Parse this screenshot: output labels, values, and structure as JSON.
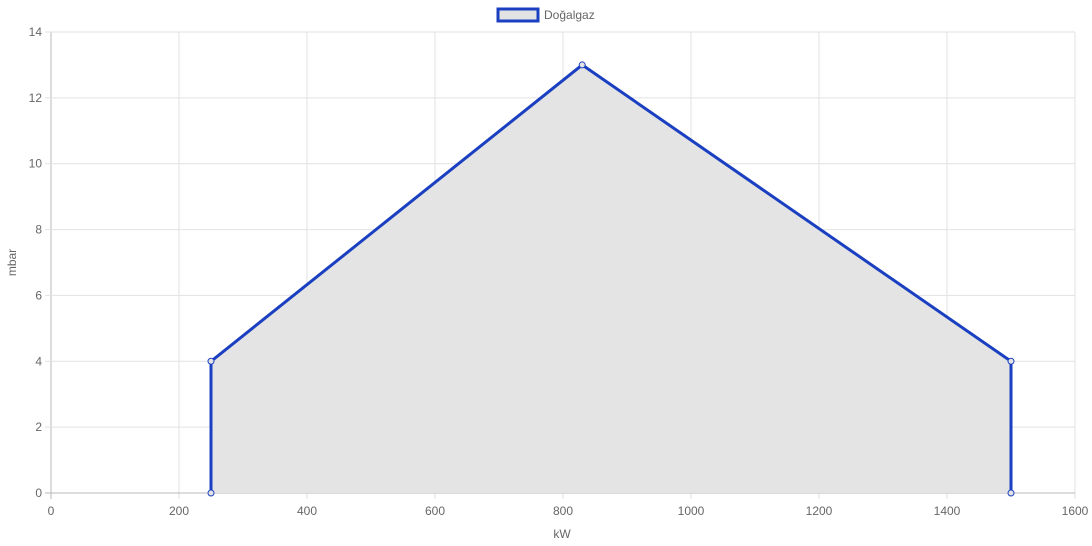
{
  "chart_data": {
    "type": "area",
    "xlabel": "kW",
    "ylabel": "mbar",
    "xlim": [
      0,
      1600
    ],
    "ylim": [
      0,
      14
    ],
    "x_ticks": [
      0,
      200,
      400,
      600,
      800,
      1000,
      1200,
      1400,
      1600
    ],
    "y_ticks": [
      0,
      2,
      4,
      6,
      8,
      10,
      12,
      14
    ],
    "grid": true,
    "legend_position": "top-center",
    "series": [
      {
        "name": "Doğalgaz",
        "line_color": "#1a3fc0",
        "fill_color": "#e3e3e4",
        "points": [
          {
            "x": 250,
            "y": 0
          },
          {
            "x": 250,
            "y": 4
          },
          {
            "x": 830,
            "y": 13
          },
          {
            "x": 1500,
            "y": 4
          },
          {
            "x": 1500,
            "y": 0
          }
        ]
      }
    ]
  }
}
